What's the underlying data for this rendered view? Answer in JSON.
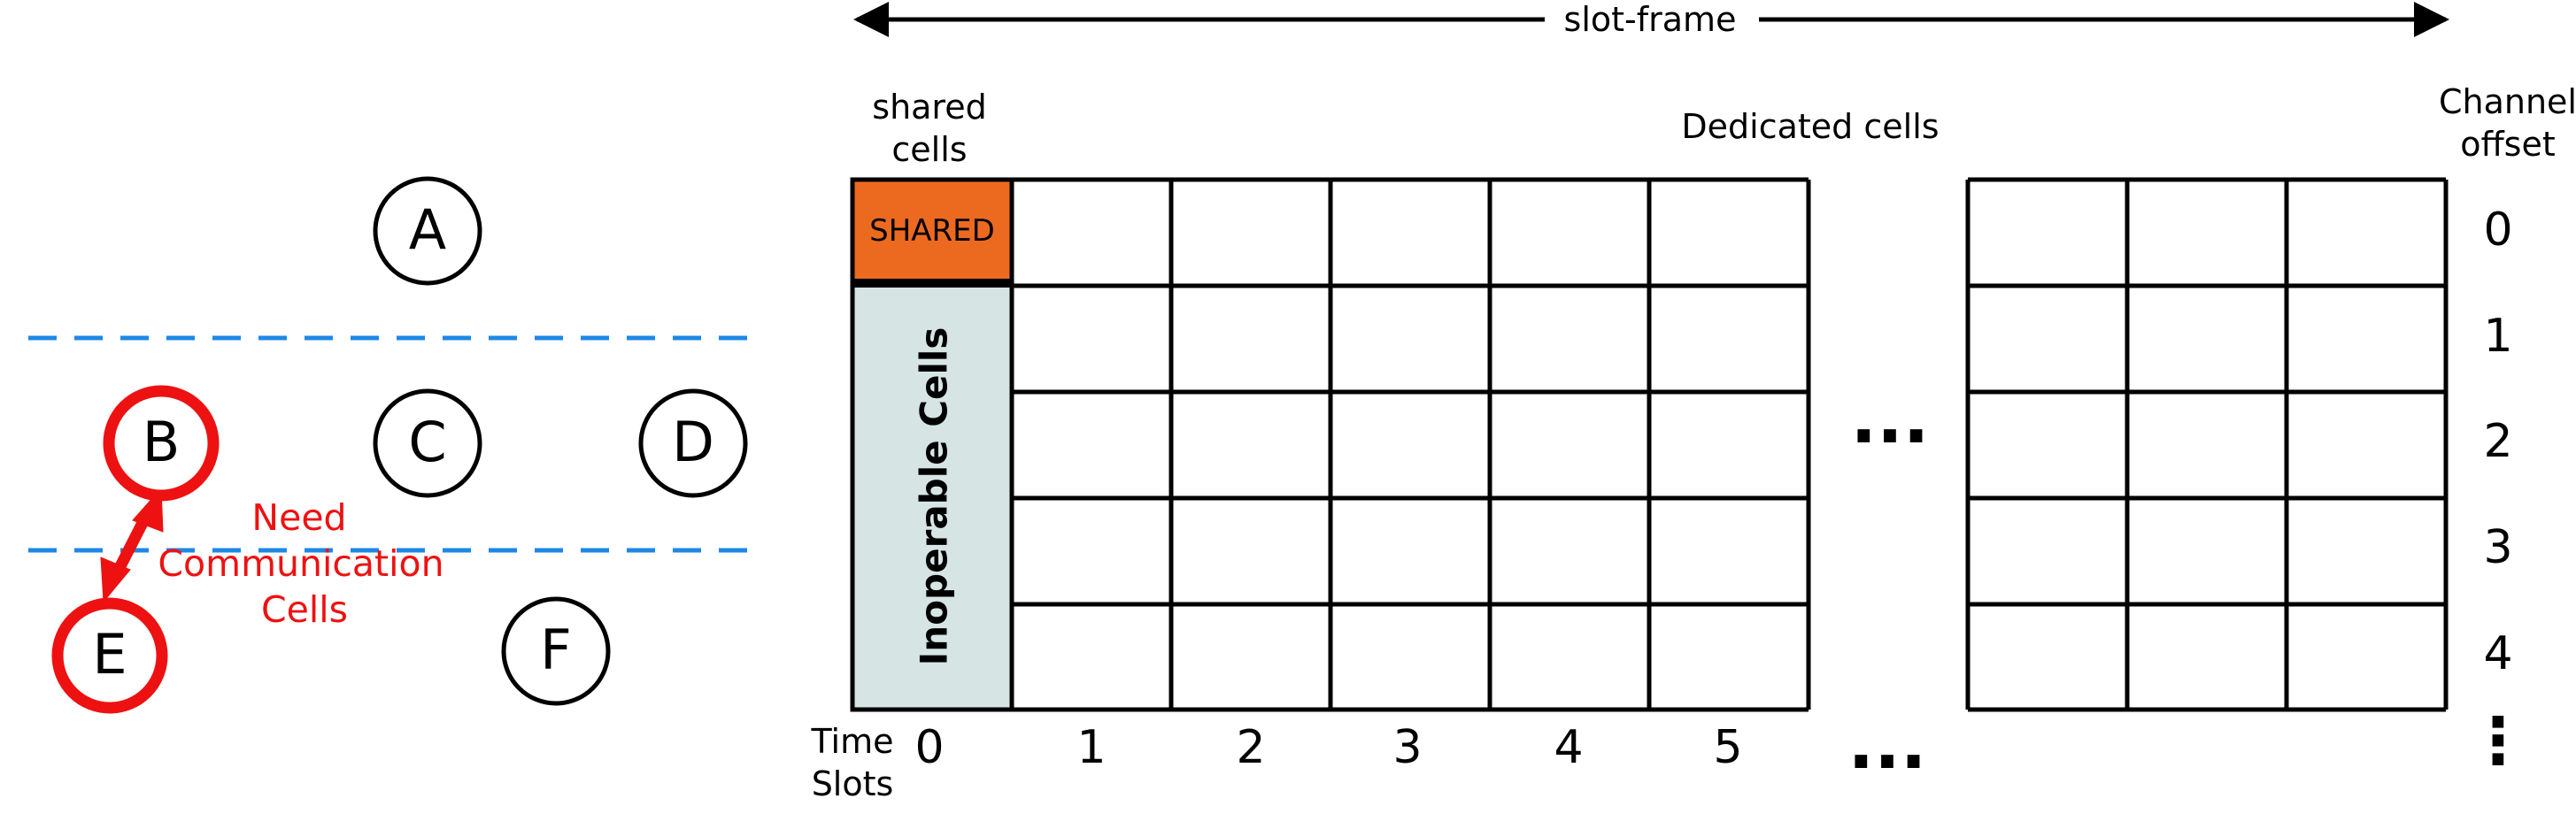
{
  "colors": {
    "black": "#000000",
    "red": "#ee1111",
    "dashed_blue": "#1e88e5",
    "shared_fill": "#ec6a20",
    "inoperable_fill": "#d6e4e4"
  },
  "topology": {
    "nodes": [
      {
        "id": "A",
        "label": "A",
        "highlight": false
      },
      {
        "id": "B",
        "label": "B",
        "highlight": true
      },
      {
        "id": "C",
        "label": "C",
        "highlight": false
      },
      {
        "id": "D",
        "label": "D",
        "highlight": false
      },
      {
        "id": "E",
        "label": "E",
        "highlight": true
      },
      {
        "id": "F",
        "label": "F",
        "highlight": false
      }
    ],
    "link_label_lines": [
      "Need",
      "Communication",
      "Cells"
    ]
  },
  "slotframe": {
    "title": "slot-frame",
    "shared_header_lines": [
      "shared",
      "cells"
    ],
    "dedicated_header": "Dedicated cells",
    "channel_header_lines": [
      "Channel",
      "offset"
    ],
    "shared_cell_label": "SHARED",
    "inoperable_label": "Inoperable Cells",
    "time_header_lines": [
      "Time",
      "Slots"
    ],
    "time_slots": [
      "0",
      "1",
      "2",
      "3",
      "4",
      "5"
    ],
    "channel_offsets": [
      "0",
      "1",
      "2",
      "3",
      "4"
    ],
    "ellipsis": "...",
    "vertical_ellipsis": "⋮"
  }
}
